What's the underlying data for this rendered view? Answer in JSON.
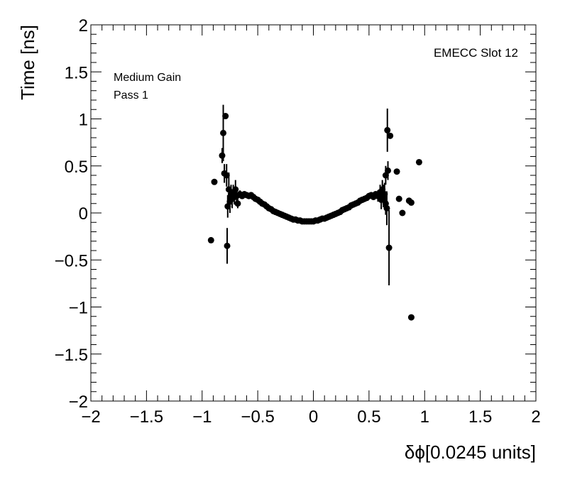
{
  "chart_data": {
    "type": "scatter",
    "title": "",
    "xlabel": "δϕ[0.0245 units]",
    "ylabel": "Time [ns]",
    "xlim": [
      -2,
      2
    ],
    "ylim": [
      -2,
      2
    ],
    "x_ticks": [
      -2,
      -1.5,
      -1,
      -0.5,
      0,
      0.5,
      1,
      1.5,
      2
    ],
    "y_ticks": [
      -2,
      -1.5,
      -1,
      -0.5,
      0,
      0.5,
      1,
      1.5,
      2
    ],
    "x_tick_labels": [
      "−2",
      "−1.5",
      "−1",
      "−0.5",
      "0",
      "0.5",
      "1",
      "1.5",
      "2"
    ],
    "y_tick_labels": [
      "−2",
      "−1.5",
      "−1",
      "−0.5",
      "0",
      "0.5",
      "1",
      "1.5",
      "2"
    ],
    "grid": false,
    "marker_color": "#000000",
    "annotations": {
      "gain": "Medium Gain",
      "pass": "Pass 1",
      "slot": "EMECC Slot 12"
    },
    "points": [
      {
        "x": -0.92,
        "y": -0.29,
        "err": 0.0
      },
      {
        "x": -0.89,
        "y": 0.33,
        "err": 0.0
      },
      {
        "x": -0.82,
        "y": 0.61,
        "err": 0.08
      },
      {
        "x": -0.81,
        "y": 0.85,
        "err": 0.3
      },
      {
        "x": -0.8,
        "y": 0.42,
        "err": 0.1
      },
      {
        "x": -0.79,
        "y": 1.03,
        "err": 0.0
      },
      {
        "x": -0.78,
        "y": 0.4,
        "err": 0.12
      },
      {
        "x": -0.775,
        "y": -0.35,
        "err": 0.19
      },
      {
        "x": -0.77,
        "y": 0.07,
        "err": 0.12
      },
      {
        "x": -0.76,
        "y": 0.25,
        "err": 0.18
      },
      {
        "x": -0.75,
        "y": 0.12,
        "err": 0.12
      },
      {
        "x": -0.74,
        "y": 0.2,
        "err": 0.1
      },
      {
        "x": -0.73,
        "y": 0.15,
        "err": 0.1
      },
      {
        "x": -0.72,
        "y": 0.22,
        "err": 0.08
      },
      {
        "x": -0.71,
        "y": 0.17,
        "err": 0.08
      },
      {
        "x": -0.7,
        "y": 0.25,
        "err": 0.1
      },
      {
        "x": -0.69,
        "y": 0.18,
        "err": 0.06
      },
      {
        "x": -0.68,
        "y": 0.1,
        "err": 0.05
      },
      {
        "x": -0.66,
        "y": 0.2,
        "err": 0.04
      },
      {
        "x": -0.64,
        "y": 0.18,
        "err": 0.03
      },
      {
        "x": -0.62,
        "y": 0.2,
        "err": 0.03
      },
      {
        "x": -0.6,
        "y": 0.19,
        "err": 0.02
      },
      {
        "x": -0.58,
        "y": 0.18,
        "err": 0.02
      },
      {
        "x": -0.56,
        "y": 0.19,
        "err": 0.02
      },
      {
        "x": -0.54,
        "y": 0.17,
        "err": 0.02
      },
      {
        "x": -0.52,
        "y": 0.15,
        "err": 0.02
      },
      {
        "x": -0.5,
        "y": 0.14,
        "err": 0.015
      },
      {
        "x": -0.48,
        "y": 0.12,
        "err": 0.015
      },
      {
        "x": -0.46,
        "y": 0.1,
        "err": 0.015
      },
      {
        "x": -0.44,
        "y": 0.09,
        "err": 0.01
      },
      {
        "x": -0.42,
        "y": 0.07,
        "err": 0.01
      },
      {
        "x": -0.4,
        "y": 0.05,
        "err": 0.01
      },
      {
        "x": -0.38,
        "y": 0.04,
        "err": 0.01
      },
      {
        "x": -0.36,
        "y": 0.02,
        "err": 0.01
      },
      {
        "x": -0.34,
        "y": 0.01,
        "err": 0.01
      },
      {
        "x": -0.32,
        "y": 0.0,
        "err": 0.01
      },
      {
        "x": -0.3,
        "y": -0.01,
        "err": 0.01
      },
      {
        "x": -0.28,
        "y": -0.02,
        "err": 0.01
      },
      {
        "x": -0.26,
        "y": -0.03,
        "err": 0.01
      },
      {
        "x": -0.24,
        "y": -0.04,
        "err": 0.01
      },
      {
        "x": -0.22,
        "y": -0.05,
        "err": 0.01
      },
      {
        "x": -0.2,
        "y": -0.06,
        "err": 0.01
      },
      {
        "x": -0.18,
        "y": -0.07,
        "err": 0.01
      },
      {
        "x": -0.16,
        "y": -0.07,
        "err": 0.01
      },
      {
        "x": -0.14,
        "y": -0.08,
        "err": 0.01
      },
      {
        "x": -0.12,
        "y": -0.08,
        "err": 0.01
      },
      {
        "x": -0.1,
        "y": -0.09,
        "err": 0.01
      },
      {
        "x": -0.08,
        "y": -0.09,
        "err": 0.01
      },
      {
        "x": -0.06,
        "y": -0.09,
        "err": 0.01
      },
      {
        "x": -0.04,
        "y": -0.09,
        "err": 0.01
      },
      {
        "x": -0.02,
        "y": -0.09,
        "err": 0.01
      },
      {
        "x": 0.0,
        "y": -0.09,
        "err": 0.01
      },
      {
        "x": 0.02,
        "y": -0.08,
        "err": 0.01
      },
      {
        "x": 0.04,
        "y": -0.08,
        "err": 0.01
      },
      {
        "x": 0.06,
        "y": -0.07,
        "err": 0.01
      },
      {
        "x": 0.08,
        "y": -0.06,
        "err": 0.01
      },
      {
        "x": 0.1,
        "y": -0.06,
        "err": 0.01
      },
      {
        "x": 0.12,
        "y": -0.05,
        "err": 0.01
      },
      {
        "x": 0.14,
        "y": -0.04,
        "err": 0.01
      },
      {
        "x": 0.16,
        "y": -0.03,
        "err": 0.01
      },
      {
        "x": 0.18,
        "y": -0.02,
        "err": 0.01
      },
      {
        "x": 0.2,
        "y": -0.01,
        "err": 0.01
      },
      {
        "x": 0.22,
        "y": 0.0,
        "err": 0.01
      },
      {
        "x": 0.24,
        "y": 0.01,
        "err": 0.01
      },
      {
        "x": 0.26,
        "y": 0.03,
        "err": 0.01
      },
      {
        "x": 0.28,
        "y": 0.04,
        "err": 0.01
      },
      {
        "x": 0.3,
        "y": 0.05,
        "err": 0.01
      },
      {
        "x": 0.32,
        "y": 0.06,
        "err": 0.01
      },
      {
        "x": 0.34,
        "y": 0.08,
        "err": 0.01
      },
      {
        "x": 0.36,
        "y": 0.09,
        "err": 0.01
      },
      {
        "x": 0.38,
        "y": 0.1,
        "err": 0.01
      },
      {
        "x": 0.4,
        "y": 0.11,
        "err": 0.01
      },
      {
        "x": 0.42,
        "y": 0.13,
        "err": 0.015
      },
      {
        "x": 0.44,
        "y": 0.14,
        "err": 0.015
      },
      {
        "x": 0.46,
        "y": 0.15,
        "err": 0.015
      },
      {
        "x": 0.48,
        "y": 0.16,
        "err": 0.02
      },
      {
        "x": 0.5,
        "y": 0.18,
        "err": 0.02
      },
      {
        "x": 0.52,
        "y": 0.19,
        "err": 0.02
      },
      {
        "x": 0.54,
        "y": 0.17,
        "err": 0.03
      },
      {
        "x": 0.56,
        "y": 0.2,
        "err": 0.03
      },
      {
        "x": 0.58,
        "y": 0.18,
        "err": 0.06
      },
      {
        "x": 0.6,
        "y": 0.22,
        "err": 0.08
      },
      {
        "x": 0.61,
        "y": 0.14,
        "err": 0.1
      },
      {
        "x": 0.62,
        "y": 0.25,
        "err": 0.1
      },
      {
        "x": 0.63,
        "y": 0.18,
        "err": 0.12
      },
      {
        "x": 0.64,
        "y": 0.2,
        "err": 0.12
      },
      {
        "x": 0.65,
        "y": 0.4,
        "err": 0.1
      },
      {
        "x": 0.65,
        "y": 0.1,
        "err": 0.12
      },
      {
        "x": 0.66,
        "y": 0.05,
        "err": 0.18
      },
      {
        "x": 0.665,
        "y": 0.88,
        "err": 0.23
      },
      {
        "x": 0.67,
        "y": 0.45,
        "err": 0.1
      },
      {
        "x": 0.68,
        "y": -0.37,
        "err": 0.4
      },
      {
        "x": 0.69,
        "y": 0.82,
        "err": 0.0
      },
      {
        "x": 0.75,
        "y": 0.44,
        "err": 0.0
      },
      {
        "x": 0.77,
        "y": 0.15,
        "err": 0.0
      },
      {
        "x": 0.8,
        "y": 0.0,
        "err": 0.0
      },
      {
        "x": 0.86,
        "y": 0.13,
        "err": 0.0
      },
      {
        "x": 0.88,
        "y": 0.11,
        "err": 0.0
      },
      {
        "x": 0.88,
        "y": -1.11,
        "err": 0.0
      },
      {
        "x": 0.95,
        "y": 0.54,
        "err": 0.0
      }
    ]
  }
}
